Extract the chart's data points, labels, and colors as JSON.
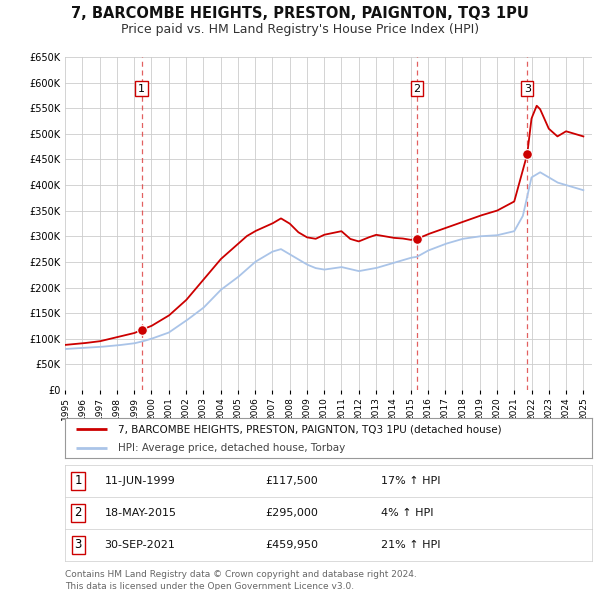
{
  "title": "7, BARCOMBE HEIGHTS, PRESTON, PAIGNTON, TQ3 1PU",
  "subtitle": "Price paid vs. HM Land Registry's House Price Index (HPI)",
  "ylim": [
    0,
    650000
  ],
  "yticks": [
    0,
    50000,
    100000,
    150000,
    200000,
    250000,
    300000,
    350000,
    400000,
    450000,
    500000,
    550000,
    600000,
    650000
  ],
  "ytick_labels": [
    "£0",
    "£50K",
    "£100K",
    "£150K",
    "£200K",
    "£250K",
    "£300K",
    "£350K",
    "£400K",
    "£450K",
    "£500K",
    "£550K",
    "£600K",
    "£650K"
  ],
  "xlim_start": 1995.0,
  "xlim_end": 2025.5,
  "xticks": [
    1995,
    1996,
    1997,
    1998,
    1999,
    2000,
    2001,
    2002,
    2003,
    2004,
    2005,
    2006,
    2007,
    2008,
    2009,
    2010,
    2011,
    2012,
    2013,
    2014,
    2015,
    2016,
    2017,
    2018,
    2019,
    2020,
    2021,
    2022,
    2023,
    2024,
    2025
  ],
  "background_color": "#ffffff",
  "plot_bg_color": "#ffffff",
  "grid_color": "#cccccc",
  "hpi_line_color": "#aac4e8",
  "price_line_color": "#cc0000",
  "sale_marker_color": "#cc0000",
  "sale_marker_size": 7,
  "dashed_line_color": "#dd4444",
  "title_fontsize": 10.5,
  "subtitle_fontsize": 9,
  "legend_label_price": "7, BARCOMBE HEIGHTS, PRESTON, PAIGNTON, TQ3 1PU (detached house)",
  "legend_label_hpi": "HPI: Average price, detached house, Torbay",
  "sales": [
    {
      "num": 1,
      "date": "11-JUN-1999",
      "price": 117500,
      "pct": "17%",
      "year": 1999.44
    },
    {
      "num": 2,
      "date": "18-MAY-2015",
      "price": 295000,
      "pct": "4%",
      "year": 2015.37
    },
    {
      "num": 3,
      "date": "30-SEP-2021",
      "price": 459950,
      "pct": "21%",
      "year": 2021.75
    }
  ],
  "footer_line1": "Contains HM Land Registry data © Crown copyright and database right 2024.",
  "footer_line2": "This data is licensed under the Open Government Licence v3.0.",
  "hpi_knots_x": [
    1995.0,
    1996.0,
    1997.0,
    1998.0,
    1999.0,
    1999.5,
    2000.0,
    2001.0,
    2002.0,
    2003.0,
    2004.0,
    2005.0,
    2006.0,
    2007.0,
    2007.5,
    2008.0,
    2008.5,
    2009.0,
    2009.5,
    2010.0,
    2011.0,
    2012.0,
    2013.0,
    2014.0,
    2015.0,
    2015.37,
    2016.0,
    2017.0,
    2018.0,
    2019.0,
    2020.0,
    2021.0,
    2021.5,
    2022.0,
    2022.5,
    2023.0,
    2023.5,
    2024.0,
    2025.0
  ],
  "hpi_knots_y": [
    80000,
    82000,
    84000,
    87000,
    91000,
    95000,
    100000,
    112000,
    135000,
    160000,
    195000,
    220000,
    250000,
    270000,
    275000,
    265000,
    255000,
    245000,
    238000,
    235000,
    240000,
    232000,
    238000,
    248000,
    258000,
    260000,
    272000,
    285000,
    295000,
    300000,
    302000,
    310000,
    340000,
    415000,
    425000,
    415000,
    405000,
    400000,
    390000
  ],
  "price_knots_x": [
    1995.0,
    1996.0,
    1997.0,
    1998.0,
    1999.0,
    1999.44,
    2000.0,
    2001.0,
    2002.0,
    2003.0,
    2004.0,
    2005.0,
    2005.5,
    2006.0,
    2007.0,
    2007.5,
    2008.0,
    2008.5,
    2009.0,
    2009.5,
    2010.0,
    2011.0,
    2011.5,
    2012.0,
    2012.5,
    2013.0,
    2013.5,
    2014.0,
    2014.5,
    2015.0,
    2015.37,
    2016.0,
    2017.0,
    2018.0,
    2019.0,
    2020.0,
    2021.0,
    2021.5,
    2021.75,
    2022.0,
    2022.3,
    2022.5,
    2023.0,
    2023.5,
    2024.0,
    2024.5,
    2025.0
  ],
  "price_knots_y": [
    88000,
    91000,
    95000,
    103000,
    111000,
    117500,
    125000,
    145000,
    175000,
    215000,
    255000,
    285000,
    300000,
    310000,
    325000,
    335000,
    325000,
    308000,
    298000,
    295000,
    303000,
    310000,
    295000,
    290000,
    297000,
    303000,
    300000,
    297000,
    296000,
    293000,
    295000,
    304000,
    316000,
    328000,
    340000,
    350000,
    368000,
    430000,
    459950,
    530000,
    555000,
    548000,
    510000,
    495000,
    505000,
    500000,
    495000
  ]
}
